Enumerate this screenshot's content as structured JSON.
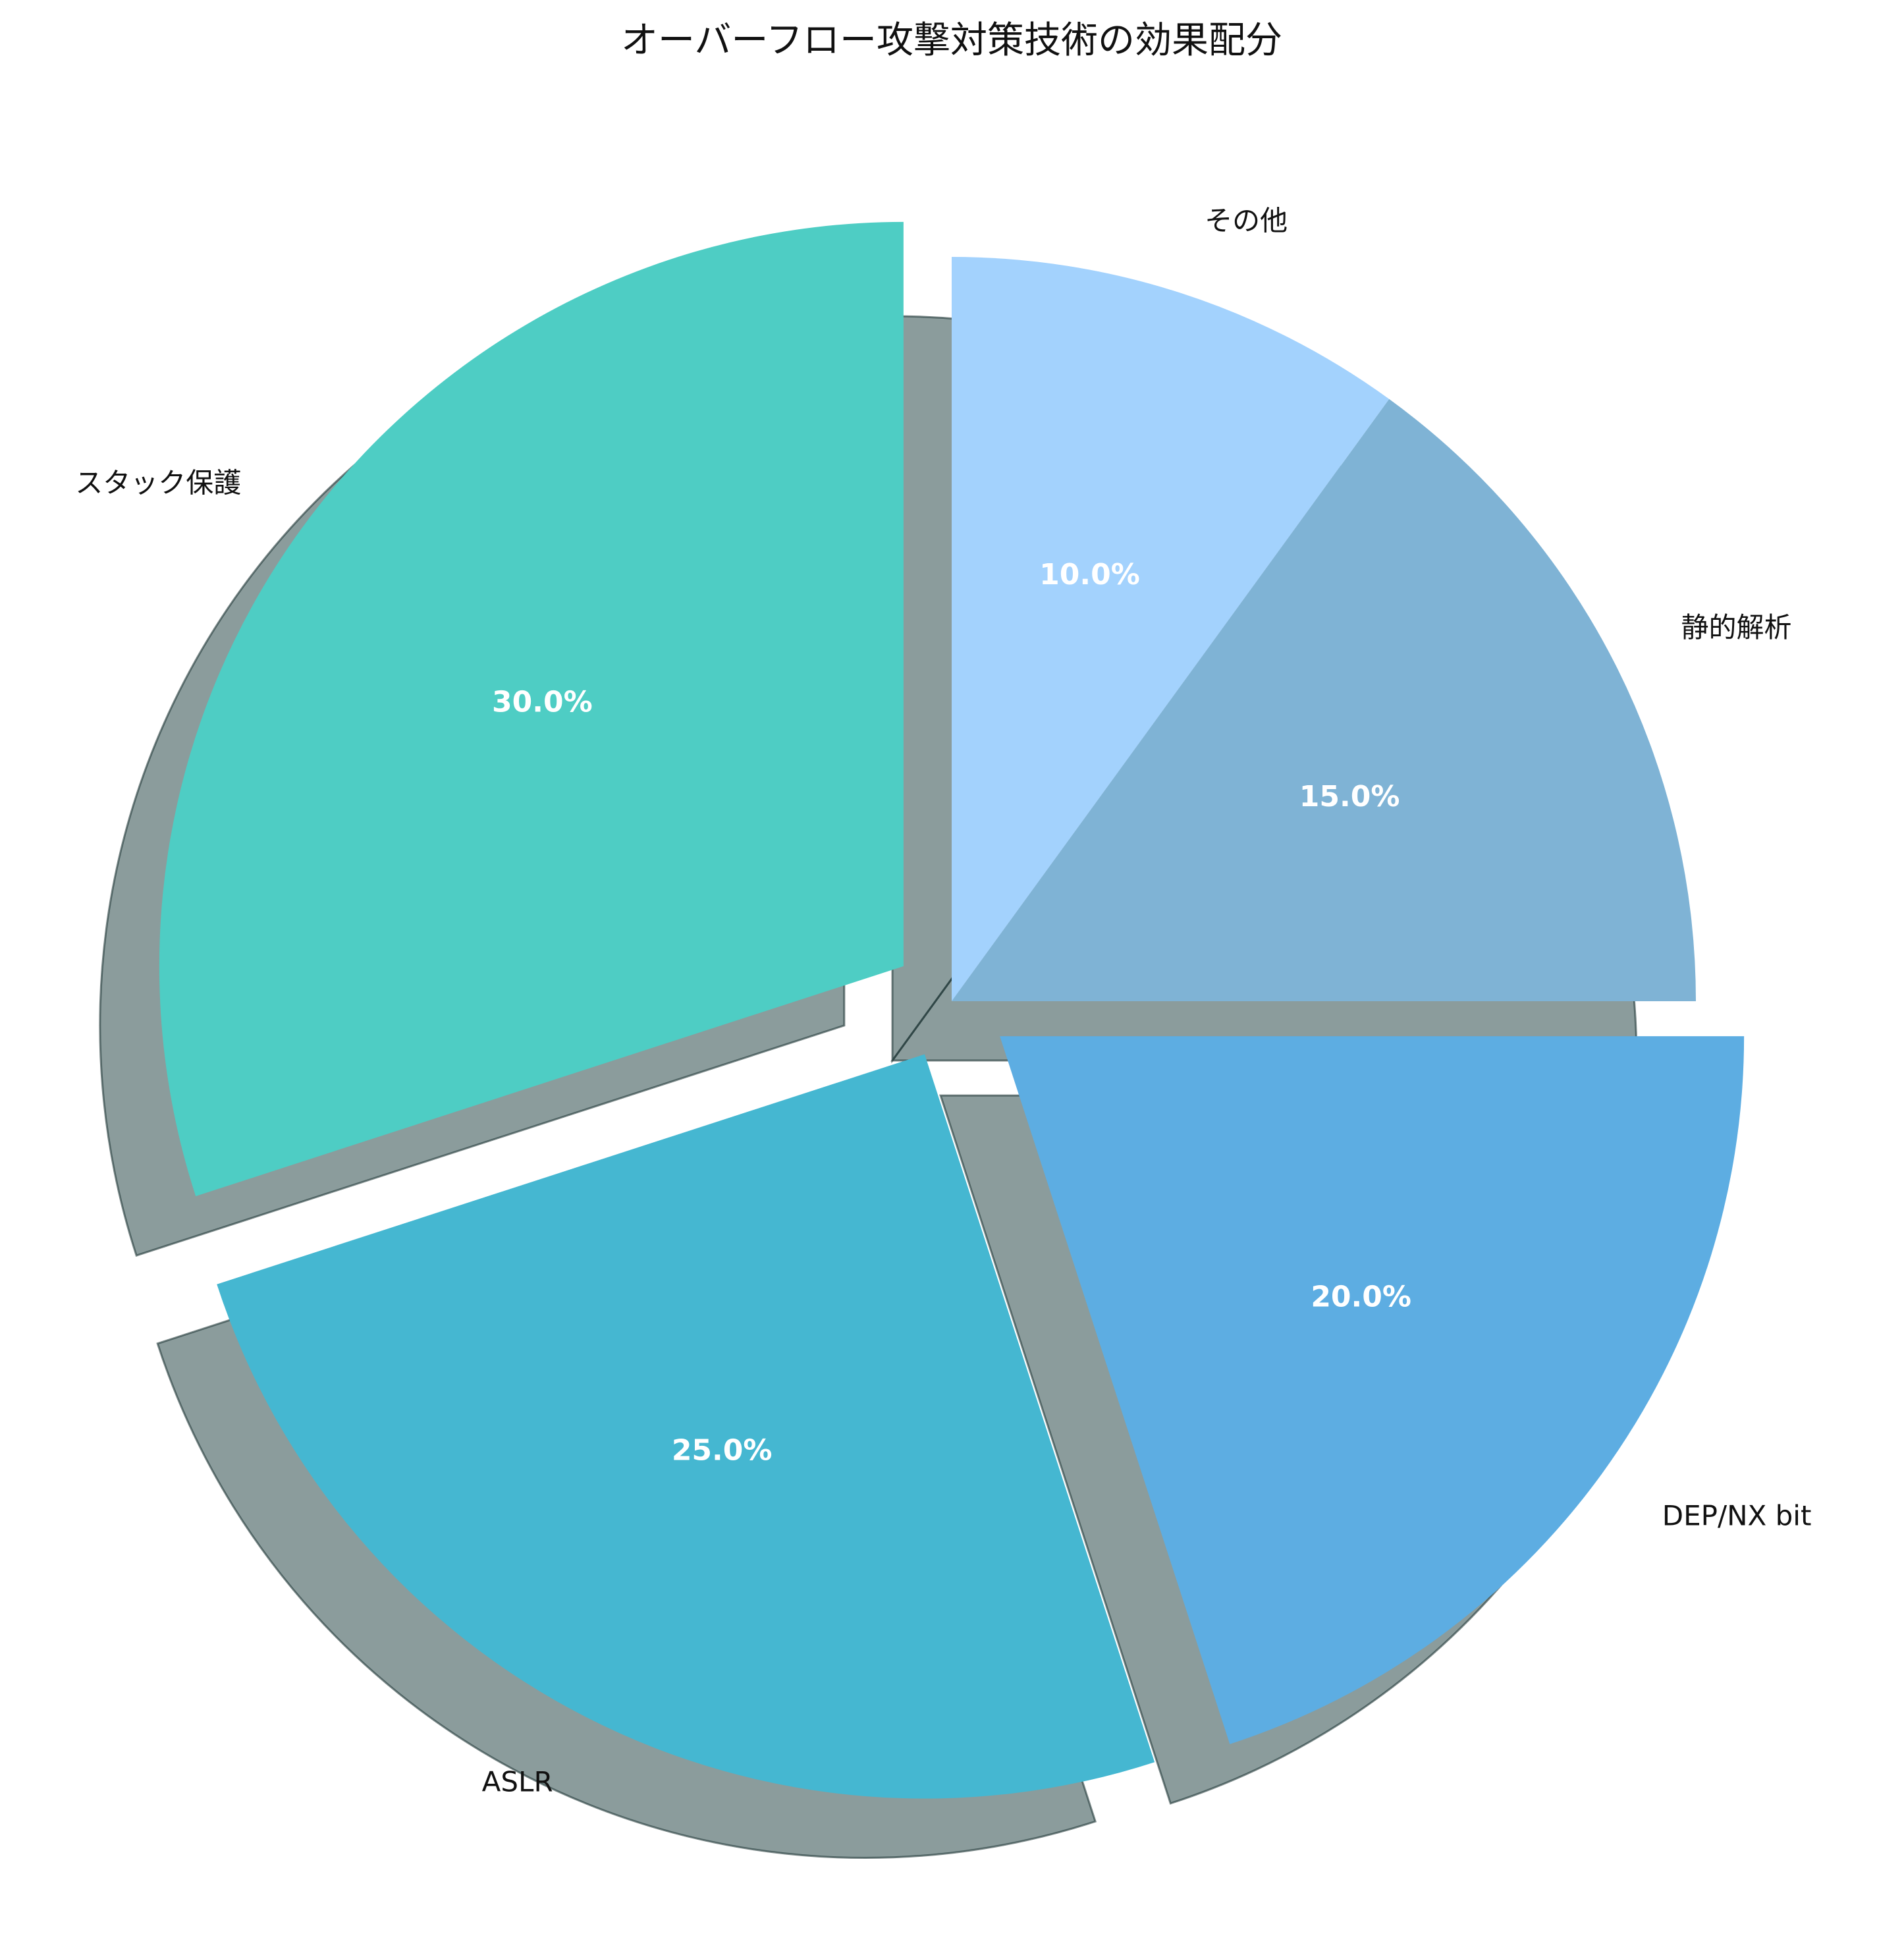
{
  "chart_data": {
    "type": "pie",
    "title": "オーバーフロー攻撃対策技術の効果配分",
    "categories": [
      "スタック保護",
      "ASLR",
      "DEP/NX bit",
      "静的解析",
      "その他"
    ],
    "values": [
      30,
      25,
      20,
      15,
      10
    ],
    "percent_labels": [
      "30.0%",
      "25.0%",
      "20.0%",
      "15.0%",
      "10.0%"
    ],
    "colors": [
      "#4ECDC4",
      "#45B7D1",
      "#5DADE2",
      "#7FB3D5",
      "#A3D2FD"
    ],
    "exploded": [
      true,
      true,
      true,
      false,
      false
    ],
    "shadow": true,
    "start_angle_deg": 90,
    "direction": "counterclockwise"
  }
}
